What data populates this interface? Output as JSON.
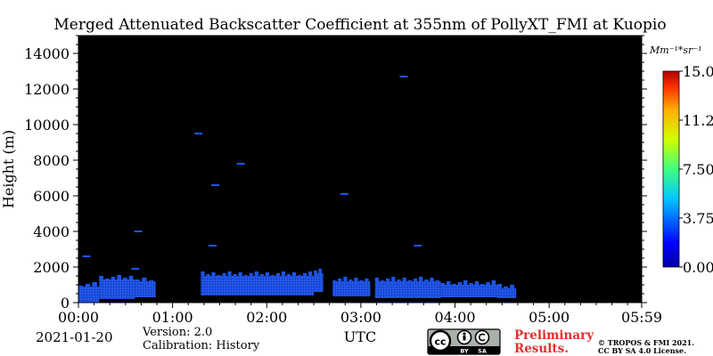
{
  "chart_data": {
    "type": "heatmap",
    "title": "Merged Attenuated Backscatter Coefficient at 355nm of PollyXT_FMI at Kuopio",
    "ylabel": "Height (m)",
    "xlabel": "UTC",
    "x_ticks": [
      "00:00",
      "01:00",
      "02:00",
      "03:00",
      "04:00",
      "05:00",
      "05:59"
    ],
    "x_tick_hours": [
      0,
      1,
      2,
      3,
      4,
      5,
      5.983
    ],
    "xlim_hours": [
      0,
      5.983
    ],
    "y_ticks": [
      0,
      2000,
      4000,
      6000,
      8000,
      10000,
      12000,
      14000
    ],
    "y_tick_labels": [
      "0",
      "2000",
      "4000",
      "6000",
      "8000",
      "10000",
      "12000",
      "14000"
    ],
    "ylim": [
      0,
      15000
    ],
    "background_color": "#000000",
    "colorbar": {
      "unit": "Mm⁻¹*sr⁻¹",
      "min": 0.0,
      "max": 15.0,
      "ticks": [
        0.0,
        3.75,
        7.5,
        11.25,
        15.0
      ],
      "tick_labels": [
        "0.00",
        "3.75",
        "7.50",
        "11.2",
        "15.0"
      ],
      "colormap": "jet"
    },
    "segments": [
      {
        "t0": 0.0,
        "t1": 0.22,
        "h0": 0,
        "h1": 900,
        "value": 1.2
      },
      {
        "t0": 0.22,
        "t1": 0.6,
        "h0": 200,
        "h1": 1300,
        "value": 1.2
      },
      {
        "t0": 0.6,
        "t1": 0.82,
        "h0": 300,
        "h1": 1200,
        "value": 1.2
      },
      {
        "t0": 1.3,
        "t1": 2.5,
        "h0": 400,
        "h1": 1500,
        "value": 1.3
      },
      {
        "t0": 2.5,
        "t1": 2.6,
        "h0": 600,
        "h1": 1650,
        "value": 1.3
      },
      {
        "t0": 2.7,
        "t1": 3.1,
        "h0": 350,
        "h1": 1200,
        "value": 1.2
      },
      {
        "t0": 3.15,
        "t1": 3.85,
        "h0": 250,
        "h1": 1200,
        "value": 1.2
      },
      {
        "t0": 3.85,
        "t1": 4.45,
        "h0": 300,
        "h1": 1000,
        "value": 1.2
      },
      {
        "t0": 4.45,
        "t1": 4.65,
        "h0": 250,
        "h1": 800,
        "value": 1.2
      }
    ],
    "speckles": [
      {
        "t": 0.08,
        "h": 2600
      },
      {
        "t": 0.6,
        "h": 1900
      },
      {
        "t": 0.63,
        "h": 4000
      },
      {
        "t": 1.27,
        "h": 9500
      },
      {
        "t": 1.42,
        "h": 3200
      },
      {
        "t": 1.45,
        "h": 6600
      },
      {
        "t": 1.72,
        "h": 7800
      },
      {
        "t": 2.82,
        "h": 6100
      },
      {
        "t": 3.45,
        "h": 12700
      },
      {
        "t": 3.6,
        "h": 3200
      }
    ]
  },
  "footer": {
    "date": "2021-01-20",
    "version": "Version: 2.0",
    "calibration": "Calibration: History",
    "preliminary_line1": "Preliminary",
    "preliminary_line2": "Results.",
    "copyright_line1": "© TROPOS & FMI 2021.",
    "copyright_line2": "CC BY SA 4.0 License.",
    "license_badge": {
      "cc": "cc",
      "by": "BY",
      "sa": "SA"
    }
  },
  "colors": {
    "preliminary": "#e03030",
    "backscatter_low": "#1a55e8"
  }
}
